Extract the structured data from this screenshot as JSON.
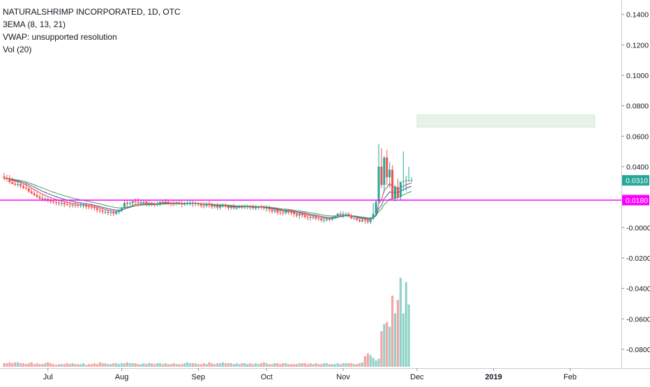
{
  "chart_data": {
    "type": "candlestick",
    "symbol_title": "NATURALSHRIMP INCORPORATED, 1D, OTC",
    "indicators": [
      "3EMA (8, 13, 21)",
      "VWAP: unsupported resolution",
      "Vol (20)"
    ],
    "y_axis": {
      "ylim": [
        -0.086,
        0.144
      ],
      "ticks": [
        0.14,
        0.12,
        0.1,
        0.08,
        0.06,
        0.04,
        -0.0,
        -0.02,
        -0.04,
        -0.06,
        -0.08
      ],
      "tick_labels": [
        "0.1400",
        "0.1200",
        "0.1000",
        "0.0800",
        "0.0600",
        "0.0400",
        "-0.0000",
        "-0.0200",
        "-0.0400",
        "-0.0600",
        "-0.0800"
      ],
      "position": "right"
    },
    "x_axis": {
      "labels": [
        "Jul",
        "Aug",
        "Sep",
        "Oct",
        "Nov",
        "Dec",
        "2019",
        "Feb"
      ],
      "label_index": [
        16,
        43,
        71,
        96,
        124,
        151,
        179,
        207
      ],
      "bold_labels": [
        "2019"
      ]
    },
    "price_tags": [
      {
        "label": "0.0310",
        "value": 0.031,
        "color": "#26a69a"
      },
      {
        "label": "0.0180",
        "value": 0.018,
        "color": "#ff00ff"
      }
    ],
    "horizontal_line": {
      "value": 0.018,
      "color": "#ff00ff"
    },
    "zone": {
      "from_index": 151,
      "to_index": 216,
      "low": 0.066,
      "high": 0.074,
      "color": "#e8f3e8"
    },
    "candles": {
      "open": [
        0.0335,
        0.0324,
        0.0318,
        0.0298,
        0.0287,
        0.0281,
        0.0285,
        0.0273,
        0.0261,
        0.0255,
        0.0237,
        0.0225,
        0.0213,
        0.0202,
        0.0191,
        0.0185,
        0.0188,
        0.0176,
        0.0172,
        0.0166,
        0.0164,
        0.0158,
        0.0161,
        0.0152,
        0.0151,
        0.0147,
        0.0149,
        0.0146,
        0.0142,
        0.0146,
        0.0146,
        0.0137,
        0.0136,
        0.0134,
        0.0127,
        0.0115,
        0.0111,
        0.0104,
        0.0104,
        0.0096,
        0.01,
        0.0091,
        0.0102,
        0.0112,
        0.0131,
        0.0162,
        0.0156,
        0.016,
        0.0172,
        0.0168,
        0.0163,
        0.0167,
        0.0169,
        0.0153,
        0.0161,
        0.0155,
        0.0151,
        0.0153,
        0.017,
        0.0166,
        0.017,
        0.016,
        0.0158,
        0.0156,
        0.0165,
        0.016,
        0.0152,
        0.0158,
        0.0158,
        0.0164,
        0.0155,
        0.016,
        0.0152,
        0.0144,
        0.0143,
        0.0157,
        0.0146,
        0.0136,
        0.0141,
        0.0131,
        0.014,
        0.0144,
        0.014,
        0.0129,
        0.0137,
        0.0127,
        0.013,
        0.0137,
        0.0135,
        0.0138,
        0.0139,
        0.0131,
        0.0128,
        0.013,
        0.0137,
        0.0135,
        0.0126,
        0.0128,
        0.0118,
        0.0106,
        0.0114,
        0.0099,
        0.0098,
        0.0095,
        0.0108,
        0.01,
        0.0098,
        0.0089,
        0.0079,
        0.0088,
        0.0081,
        0.007,
        0.0069,
        0.0064,
        0.0068,
        0.0059,
        0.0058,
        0.0048,
        0.0049,
        0.0054,
        0.0053,
        0.0064,
        0.0075,
        0.009,
        0.0081,
        0.009,
        0.009,
        0.008,
        0.0061,
        0.0062,
        0.0051,
        0.0041,
        0.005,
        0.0046,
        0.0036,
        0.006,
        0.009,
        0.017,
        0.04,
        0.028,
        0.046,
        0.033,
        0.038,
        0.019,
        0.0265,
        0.02,
        0.03,
        0.0305,
        0.031,
        0.031
      ],
      "high": [
        0.0358,
        0.0347,
        0.0345,
        0.033,
        0.0314,
        0.0303,
        0.0297,
        0.0282,
        0.0288,
        0.0274,
        0.0258,
        0.0243,
        0.0236,
        0.0218,
        0.0214,
        0.0203,
        0.0198,
        0.0191,
        0.0183,
        0.0186,
        0.0181,
        0.0173,
        0.0169,
        0.0178,
        0.0169,
        0.0161,
        0.0166,
        0.0159,
        0.0166,
        0.0161,
        0.0163,
        0.0156,
        0.0158,
        0.0145,
        0.0146,
        0.0135,
        0.0132,
        0.0119,
        0.0115,
        0.0114,
        0.0114,
        0.0111,
        0.0117,
        0.0134,
        0.0182,
        0.0178,
        0.0174,
        0.018,
        0.0191,
        0.0191,
        0.0182,
        0.018,
        0.0179,
        0.0178,
        0.0171,
        0.0166,
        0.0172,
        0.0172,
        0.0181,
        0.0187,
        0.018,
        0.0172,
        0.0176,
        0.0174,
        0.0183,
        0.0176,
        0.0171,
        0.0175,
        0.0179,
        0.0176,
        0.0172,
        0.0168,
        0.0165,
        0.0167,
        0.0168,
        0.0175,
        0.0164,
        0.0155,
        0.0162,
        0.0156,
        0.0159,
        0.016,
        0.0152,
        0.0149,
        0.0156,
        0.0141,
        0.0148,
        0.015,
        0.0152,
        0.0152,
        0.015,
        0.0152,
        0.0148,
        0.0143,
        0.015,
        0.0148,
        0.0146,
        0.0143,
        0.0131,
        0.0129,
        0.0127,
        0.0116,
        0.0116,
        0.0124,
        0.0123,
        0.0119,
        0.0115,
        0.0103,
        0.01,
        0.0103,
        0.0104,
        0.009,
        0.0088,
        0.0085,
        0.0086,
        0.0078,
        0.0069,
        0.0068,
        0.0066,
        0.0065,
        0.0079,
        0.0082,
        0.0097,
        0.0107,
        0.0106,
        0.0101,
        0.0101,
        0.0089,
        0.0079,
        0.0078,
        0.0067,
        0.0064,
        0.0066,
        0.0064,
        0.0069,
        0.016,
        0.018,
        0.055,
        0.052,
        0.047,
        0.051,
        0.043,
        0.041,
        0.028,
        0.032,
        0.028,
        0.05,
        0.034,
        0.04,
        0.033
      ],
      "low": [
        0.031,
        0.0302,
        0.0288,
        0.0284,
        0.0272,
        0.0266,
        0.0259,
        0.0252,
        0.0246,
        0.0227,
        0.0218,
        0.0206,
        0.0193,
        0.018,
        0.0174,
        0.017,
        0.0165,
        0.0156,
        0.0153,
        0.0146,
        0.0143,
        0.0141,
        0.0133,
        0.014,
        0.0127,
        0.0131,
        0.0128,
        0.013,
        0.013,
        0.0126,
        0.012,
        0.0119,
        0.0117,
        0.011,
        0.0098,
        0.0095,
        0.0088,
        0.0089,
        0.008,
        0.0076,
        0.0076,
        0.0082,
        0.0087,
        0.0102,
        0.0117,
        0.0139,
        0.0145,
        0.0146,
        0.0151,
        0.0147,
        0.0152,
        0.0149,
        0.014,
        0.0139,
        0.0139,
        0.0135,
        0.0141,
        0.0142,
        0.0153,
        0.015,
        0.0147,
        0.0139,
        0.0139,
        0.0146,
        0.0148,
        0.0133,
        0.0141,
        0.0146,
        0.0144,
        0.0135,
        0.014,
        0.0138,
        0.013,
        0.0126,
        0.013,
        0.0131,
        0.0122,
        0.0125,
        0.0116,
        0.0117,
        0.0129,
        0.0126,
        0.0114,
        0.0117,
        0.0116,
        0.0115,
        0.0123,
        0.0121,
        0.012,
        0.012,
        0.0116,
        0.0116,
        0.0113,
        0.0116,
        0.0117,
        0.0113,
        0.0105,
        0.0099,
        0.0092,
        0.0093,
        0.0082,
        0.0081,
        0.0079,
        0.0085,
        0.0084,
        0.0079,
        0.0069,
        0.0065,
        0.0059,
        0.0064,
        0.0057,
        0.0047,
        0.0046,
        0.0052,
        0.0047,
        0.0044,
        0.0036,
        0.0031,
        0.004,
        0.004,
        0.0044,
        0.0056,
        0.0059,
        0.0067,
        0.0061,
        0.008,
        0.0065,
        0.0054,
        0.0049,
        0.004,
        0.0034,
        0.0033,
        0.0025,
        0.0026,
        0.0022,
        0.0049,
        0.008,
        0.015,
        0.026,
        0.023,
        0.028,
        0.026,
        0.019,
        0.017,
        0.019,
        0.018,
        0.024,
        0.024,
        0.03,
        0.03
      ],
      "close": [
        0.0324,
        0.0318,
        0.0298,
        0.0287,
        0.0281,
        0.0285,
        0.0273,
        0.0261,
        0.0255,
        0.0237,
        0.0225,
        0.0213,
        0.0202,
        0.0191,
        0.0185,
        0.0188,
        0.0176,
        0.0172,
        0.0166,
        0.0164,
        0.0158,
        0.0161,
        0.0152,
        0.0151,
        0.0147,
        0.0149,
        0.0146,
        0.0142,
        0.0146,
        0.0146,
        0.0137,
        0.0136,
        0.0134,
        0.0127,
        0.0115,
        0.0111,
        0.0104,
        0.0104,
        0.0096,
        0.01,
        0.0091,
        0.0102,
        0.0112,
        0.0131,
        0.0162,
        0.0156,
        0.016,
        0.0172,
        0.0168,
        0.0163,
        0.0167,
        0.0169,
        0.0153,
        0.0161,
        0.0155,
        0.0151,
        0.0153,
        0.017,
        0.0166,
        0.017,
        0.016,
        0.0158,
        0.0156,
        0.0165,
        0.016,
        0.0152,
        0.0158,
        0.0158,
        0.0164,
        0.0155,
        0.016,
        0.0152,
        0.0144,
        0.0143,
        0.0157,
        0.0146,
        0.0136,
        0.0141,
        0.0131,
        0.014,
        0.0144,
        0.014,
        0.0129,
        0.0137,
        0.0127,
        0.013,
        0.0137,
        0.0135,
        0.0138,
        0.0139,
        0.0131,
        0.0128,
        0.013,
        0.0137,
        0.0135,
        0.0126,
        0.0128,
        0.0118,
        0.0106,
        0.0114,
        0.0099,
        0.0098,
        0.0095,
        0.0108,
        0.01,
        0.0098,
        0.0089,
        0.0079,
        0.0088,
        0.0081,
        0.007,
        0.0069,
        0.0064,
        0.0068,
        0.0059,
        0.0058,
        0.0048,
        0.0049,
        0.0054,
        0.0053,
        0.0064,
        0.0075,
        0.009,
        0.0081,
        0.009,
        0.009,
        0.008,
        0.0061,
        0.0062,
        0.0051,
        0.0041,
        0.005,
        0.0046,
        0.0036,
        0.006,
        0.009,
        0.017,
        0.04,
        0.028,
        0.046,
        0.033,
        0.038,
        0.019,
        0.0265,
        0.02,
        0.03,
        0.0305,
        0.031,
        0.031,
        0.031
      ],
      "x_index_start": 0
    },
    "volume": {
      "values": [
        4,
        4,
        5,
        4,
        5,
        5,
        4,
        4,
        3,
        4,
        5,
        3,
        4,
        3,
        3,
        4,
        5,
        4,
        3,
        2,
        3,
        3,
        3,
        4,
        3,
        4,
        3,
        3,
        3,
        4,
        2,
        3,
        3,
        4,
        3,
        5,
        4,
        4,
        3,
        3,
        4,
        4,
        3,
        4,
        4,
        5,
        4,
        4,
        4,
        3,
        3,
        4,
        3,
        4,
        4,
        3,
        4,
        4,
        3,
        4,
        3,
        3,
        4,
        3,
        3,
        3,
        4,
        5,
        4,
        4,
        4,
        3,
        3,
        4,
        3,
        5,
        4,
        3,
        4,
        4,
        5,
        4,
        4,
        4,
        3,
        4,
        3,
        4,
        4,
        3,
        4,
        3,
        4,
        3,
        4,
        5,
        4,
        3,
        3,
        4,
        4,
        3,
        4,
        4,
        3,
        3,
        3,
        3,
        4,
        4,
        4,
        3,
        4,
        3,
        4,
        3,
        3,
        4,
        4,
        3,
        3,
        3,
        4,
        3,
        4,
        4,
        4,
        4,
        3,
        3,
        4,
        5,
        12,
        15,
        13,
        10,
        7,
        9,
        40,
        48,
        50,
        45,
        80,
        60,
        75,
        100,
        60,
        95,
        70
      ],
      "ylim": [
        0,
        105
      ],
      "colors": {
        "up": "#8fd3c9",
        "down": "#f5a5a5"
      }
    },
    "ema": [
      {
        "period": 8,
        "color": "#e53935"
      },
      {
        "period": 13,
        "color": "#3f51b5"
      },
      {
        "period": 21,
        "color": "#43a047"
      }
    ],
    "colors": {
      "up": "#26a69a",
      "down": "#ef5350"
    }
  }
}
